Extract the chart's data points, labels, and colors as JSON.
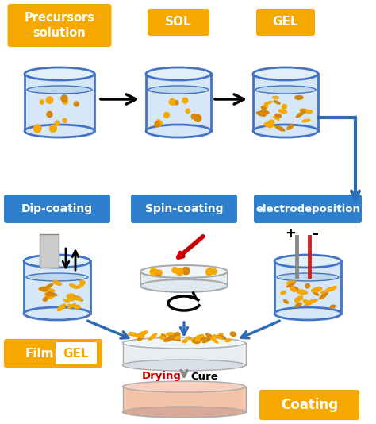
{
  "bg_color": "#ffffff",
  "gold_color": "#F5A800",
  "gold_dark": "#D4870A",
  "blue_label": "#2E7FCC",
  "blue_arrow": "#2E6BB5",
  "light_blue_fill": "#D6E8F7",
  "container_outline": "#4472C4",
  "black_arrow": "#1a1a1a",
  "red_text": "#cc0000",
  "gray_arrow": "#888888",
  "coating_color": "#F4C4A8",
  "labels_top": [
    "Precursors\nsolution",
    "SOL",
    "GEL"
  ],
  "labels_mid": [
    "Dip-coating",
    "Spin-coating",
    "electrodeposition"
  ],
  "film_text": "Film",
  "gel_text": "GEL",
  "coating_text": "Coating",
  "drying_text": "Drying",
  "cure_text": "Cure"
}
